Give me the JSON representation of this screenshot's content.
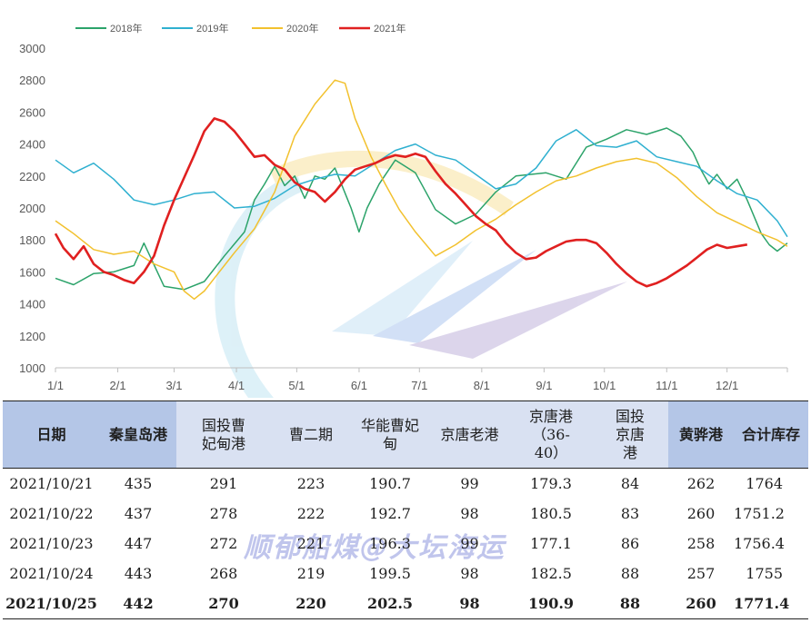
{
  "chart_data": {
    "type": "line",
    "xlabel": "",
    "ylabel": "",
    "x_ticks": [
      "1/1",
      "2/1",
      "3/1",
      "4/1",
      "5/1",
      "6/1",
      "7/1",
      "8/1",
      "9/1",
      "10/1",
      "11/1",
      "12/1"
    ],
    "x_range": [
      1,
      365
    ],
    "ylim": [
      1000,
      3000
    ],
    "y_ticks": [
      1000,
      1200,
      1400,
      1600,
      1800,
      2000,
      2200,
      2400,
      2600,
      2800,
      3000
    ],
    "legend_position": "top-left",
    "series": [
      {
        "name": "2018年",
        "color": "#2ca36a",
        "points": [
          [
            1,
            1560
          ],
          [
            10,
            1520
          ],
          [
            20,
            1590
          ],
          [
            30,
            1600
          ],
          [
            40,
            1640
          ],
          [
            45,
            1780
          ],
          [
            55,
            1510
          ],
          [
            65,
            1490
          ],
          [
            75,
            1540
          ],
          [
            85,
            1700
          ],
          [
            95,
            1850
          ],
          [
            100,
            2050
          ],
          [
            105,
            2150
          ],
          [
            110,
            2260
          ],
          [
            115,
            2140
          ],
          [
            120,
            2200
          ],
          [
            125,
            2060
          ],
          [
            130,
            2200
          ],
          [
            135,
            2180
          ],
          [
            140,
            2250
          ],
          [
            148,
            2000
          ],
          [
            152,
            1850
          ],
          [
            156,
            2000
          ],
          [
            162,
            2150
          ],
          [
            170,
            2300
          ],
          [
            180,
            2220
          ],
          [
            190,
            1990
          ],
          [
            200,
            1900
          ],
          [
            210,
            1960
          ],
          [
            220,
            2100
          ],
          [
            230,
            2200
          ],
          [
            245,
            2220
          ],
          [
            255,
            2180
          ],
          [
            265,
            2380
          ],
          [
            275,
            2430
          ],
          [
            285,
            2490
          ],
          [
            295,
            2460
          ],
          [
            305,
            2500
          ],
          [
            312,
            2450
          ],
          [
            318,
            2350
          ],
          [
            322,
            2240
          ],
          [
            326,
            2150
          ],
          [
            330,
            2210
          ],
          [
            335,
            2120
          ],
          [
            340,
            2180
          ],
          [
            345,
            2050
          ],
          [
            352,
            1840
          ],
          [
            356,
            1770
          ],
          [
            360,
            1730
          ],
          [
            365,
            1780
          ]
        ]
      },
      {
        "name": "2019年",
        "color": "#2fb0d0",
        "points": [
          [
            1,
            2300
          ],
          [
            10,
            2220
          ],
          [
            20,
            2280
          ],
          [
            30,
            2180
          ],
          [
            40,
            2050
          ],
          [
            50,
            2020
          ],
          [
            60,
            2050
          ],
          [
            70,
            2090
          ],
          [
            80,
            2100
          ],
          [
            90,
            2000
          ],
          [
            100,
            2010
          ],
          [
            110,
            2060
          ],
          [
            120,
            2140
          ],
          [
            130,
            2180
          ],
          [
            140,
            2210
          ],
          [
            150,
            2200
          ],
          [
            160,
            2280
          ],
          [
            170,
            2360
          ],
          [
            180,
            2400
          ],
          [
            190,
            2330
          ],
          [
            200,
            2300
          ],
          [
            210,
            2210
          ],
          [
            220,
            2120
          ],
          [
            230,
            2150
          ],
          [
            240,
            2250
          ],
          [
            250,
            2420
          ],
          [
            260,
            2490
          ],
          [
            270,
            2390
          ],
          [
            280,
            2380
          ],
          [
            290,
            2420
          ],
          [
            300,
            2320
          ],
          [
            310,
            2290
          ],
          [
            320,
            2260
          ],
          [
            330,
            2170
          ],
          [
            340,
            2090
          ],
          [
            350,
            2050
          ],
          [
            360,
            1920
          ],
          [
            365,
            1820
          ]
        ]
      },
      {
        "name": "2020年",
        "color": "#f2c12e",
        "points": [
          [
            1,
            1920
          ],
          [
            10,
            1840
          ],
          [
            20,
            1740
          ],
          [
            30,
            1710
          ],
          [
            40,
            1730
          ],
          [
            50,
            1650
          ],
          [
            60,
            1600
          ],
          [
            65,
            1480
          ],
          [
            70,
            1430
          ],
          [
            75,
            1480
          ],
          [
            80,
            1560
          ],
          [
            90,
            1720
          ],
          [
            100,
            1870
          ],
          [
            110,
            2100
          ],
          [
            120,
            2450
          ],
          [
            130,
            2650
          ],
          [
            140,
            2800
          ],
          [
            145,
            2780
          ],
          [
            150,
            2560
          ],
          [
            158,
            2320
          ],
          [
            165,
            2150
          ],
          [
            172,
            1990
          ],
          [
            180,
            1850
          ],
          [
            190,
            1700
          ],
          [
            200,
            1770
          ],
          [
            210,
            1860
          ],
          [
            220,
            1930
          ],
          [
            230,
            2020
          ],
          [
            240,
            2100
          ],
          [
            250,
            2170
          ],
          [
            260,
            2200
          ],
          [
            270,
            2250
          ],
          [
            280,
            2290
          ],
          [
            290,
            2310
          ],
          [
            300,
            2280
          ],
          [
            310,
            2190
          ],
          [
            320,
            2070
          ],
          [
            330,
            1970
          ],
          [
            340,
            1910
          ],
          [
            350,
            1850
          ],
          [
            360,
            1800
          ],
          [
            365,
            1760
          ]
        ]
      },
      {
        "name": "2021年",
        "color": "#e02020",
        "points": [
          [
            1,
            1840
          ],
          [
            5,
            1750
          ],
          [
            10,
            1680
          ],
          [
            15,
            1760
          ],
          [
            20,
            1650
          ],
          [
            25,
            1600
          ],
          [
            30,
            1580
          ],
          [
            35,
            1550
          ],
          [
            40,
            1530
          ],
          [
            45,
            1600
          ],
          [
            50,
            1700
          ],
          [
            55,
            1890
          ],
          [
            60,
            2050
          ],
          [
            65,
            2190
          ],
          [
            70,
            2330
          ],
          [
            75,
            2480
          ],
          [
            80,
            2560
          ],
          [
            85,
            2540
          ],
          [
            90,
            2480
          ],
          [
            95,
            2400
          ],
          [
            100,
            2320
          ],
          [
            105,
            2330
          ],
          [
            110,
            2270
          ],
          [
            115,
            2240
          ],
          [
            120,
            2160
          ],
          [
            125,
            2120
          ],
          [
            130,
            2100
          ],
          [
            135,
            2040
          ],
          [
            140,
            2100
          ],
          [
            145,
            2180
          ],
          [
            150,
            2240
          ],
          [
            155,
            2260
          ],
          [
            160,
            2280
          ],
          [
            165,
            2310
          ],
          [
            170,
            2330
          ],
          [
            175,
            2320
          ],
          [
            180,
            2340
          ],
          [
            185,
            2320
          ],
          [
            190,
            2230
          ],
          [
            195,
            2150
          ],
          [
            200,
            2090
          ],
          [
            205,
            2020
          ],
          [
            210,
            1950
          ],
          [
            215,
            1900
          ],
          [
            220,
            1860
          ],
          [
            225,
            1780
          ],
          [
            230,
            1720
          ],
          [
            235,
            1680
          ],
          [
            240,
            1690
          ],
          [
            245,
            1730
          ],
          [
            250,
            1760
          ],
          [
            255,
            1790
          ],
          [
            260,
            1800
          ],
          [
            265,
            1800
          ],
          [
            270,
            1780
          ],
          [
            275,
            1720
          ],
          [
            280,
            1650
          ],
          [
            285,
            1590
          ],
          [
            290,
            1540
          ],
          [
            295,
            1510
          ],
          [
            300,
            1530
          ],
          [
            305,
            1560
          ],
          [
            310,
            1600
          ],
          [
            315,
            1640
          ],
          [
            320,
            1690
          ],
          [
            325,
            1740
          ],
          [
            330,
            1770
          ],
          [
            335,
            1750
          ],
          [
            340,
            1760
          ],
          [
            345,
            1771
          ]
        ]
      }
    ]
  },
  "table": {
    "headers": [
      "日期",
      "秦皇岛港",
      "国投曹妃甸港",
      "曹二期",
      "华能曹妃甸",
      "京唐老港",
      "京唐港（36-40）",
      "国投京唐港",
      "黄骅港",
      "合计库存"
    ],
    "rows": [
      [
        "2021/10/21",
        "435",
        "291",
        "223",
        "190.7",
        "99",
        "179.3",
        "84",
        "262",
        "1764"
      ],
      [
        "2021/10/22",
        "437",
        "278",
        "222",
        "192.7",
        "98",
        "180.5",
        "83",
        "260",
        "1751.2"
      ],
      [
        "2021/10/23",
        "447",
        "272",
        "221",
        "196.3",
        "99",
        "177.1",
        "86",
        "258",
        "1756.4"
      ],
      [
        "2021/10/24",
        "443",
        "268",
        "219",
        "199.5",
        "98",
        "182.5",
        "88",
        "257",
        "1755"
      ],
      [
        "2021/10/25",
        "442",
        "270",
        "220",
        "202.5",
        "98",
        "190.9",
        "88",
        "260",
        "1771.4"
      ]
    ]
  },
  "watermark": "顺郁船煤@大坛海运"
}
